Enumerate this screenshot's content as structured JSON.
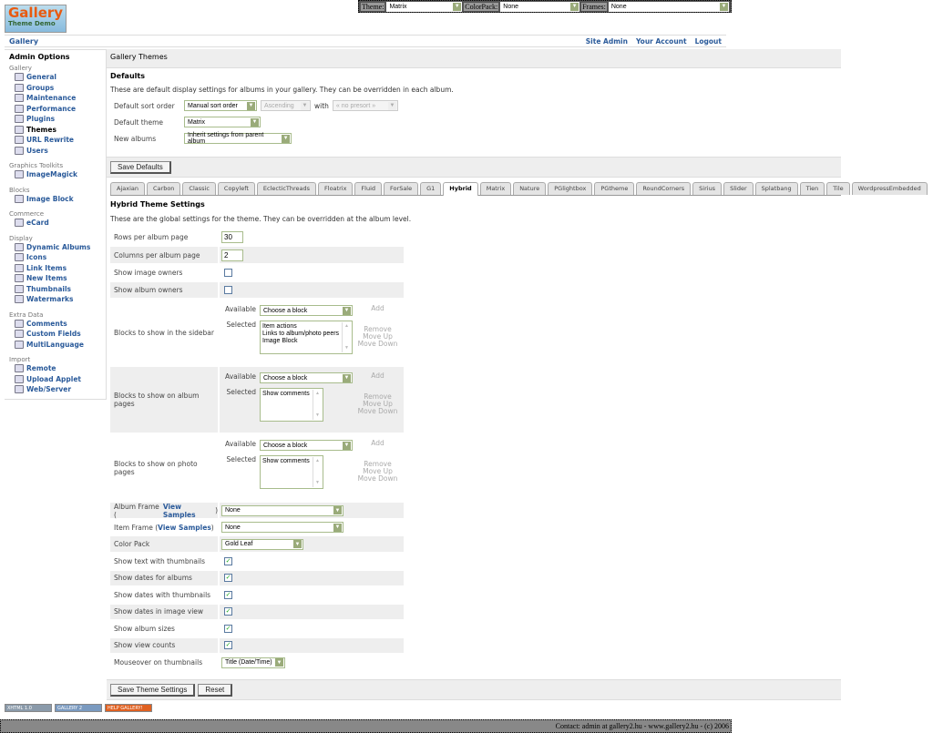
{
  "topbar": {
    "theme_label": "Theme:",
    "theme_value": "Matrix",
    "colorpack_label": "ColorPack:",
    "colorpack_value": "None",
    "frames_label": "Frames:",
    "frames_value": "None"
  },
  "logo": {
    "text": "Gallery",
    "subtext": "Theme Demo"
  },
  "nav": {
    "breadcrumb": "Gallery",
    "links": [
      "Site Admin",
      "Your Account",
      "Logout"
    ]
  },
  "sidebar": {
    "title": "Admin Options",
    "groups": [
      {
        "label": "Gallery",
        "items": [
          "General",
          "Groups",
          "Maintenance",
          "Performance",
          "Plugins",
          "Themes",
          "URL Rewrite",
          "Users"
        ]
      },
      {
        "label": "Graphics Toolkits",
        "items": [
          "ImageMagick"
        ]
      },
      {
        "label": "Blocks",
        "items": [
          "Image Block"
        ]
      },
      {
        "label": "Commerce",
        "items": [
          "eCard"
        ]
      },
      {
        "label": "Display",
        "items": [
          "Dynamic Albums",
          "Icons",
          "Link Items",
          "New Items",
          "Thumbnails",
          "Watermarks"
        ]
      },
      {
        "label": "Extra Data",
        "items": [
          "Comments",
          "Custom Fields",
          "MultiLanguage"
        ]
      },
      {
        "label": "Import",
        "items": [
          "Remote",
          "Upload Applet",
          "Web/Server"
        ]
      }
    ],
    "current": "Themes"
  },
  "main": {
    "title": "Gallery Themes"
  },
  "defaults": {
    "heading": "Defaults",
    "description": "These are default display settings for albums in your gallery. They can be overridden in each album.",
    "sort_label": "Default sort order",
    "sort_value": "Manual sort order",
    "direction_value": "Ascending",
    "with_label": "with",
    "presort_value": "« no presort »",
    "theme_label": "Default theme",
    "theme_value": "Matrix",
    "new_label": "New albums",
    "new_value": "Inherit settings from parent album",
    "save": "Save Defaults"
  },
  "tabs": [
    "Ajaxian",
    "Carbon",
    "Classic",
    "Copyleft",
    "EclecticThreads",
    "Floatrix",
    "Fluid",
    "ForSale",
    "G1",
    "Hybrid",
    "Matrix",
    "Nature",
    "PGlightbox",
    "PGtheme",
    "RoundCorners",
    "Sirius",
    "Slider",
    "Splatbang",
    "Tien",
    "Tile",
    "WordpressEmbedded"
  ],
  "active_tab": "Hybrid",
  "settings": {
    "heading": "Hybrid Theme Settings",
    "description": "These are the global settings for the theme. They can be overridden at the album level.",
    "rows_label": "Rows per album page",
    "rows_value": "30",
    "cols_label": "Columns per album page",
    "cols_value": "2",
    "image_owners_label": "Show image owners",
    "image_owners": false,
    "album_owners_label": "Show album owners",
    "album_owners": false,
    "blocks": {
      "available_label": "Available",
      "selected_label": "Selected",
      "choose": "Choose a block",
      "add": "Add",
      "remove": "Remove",
      "move_up": "Move Up",
      "move_down": "Move Down",
      "sidebar": {
        "label": "Blocks to show in the sidebar",
        "selected": [
          "Item actions",
          "Links to album/photo peers",
          "Image Block"
        ]
      },
      "album": {
        "label": "Blocks to show on album pages",
        "selected": [
          "Show comments"
        ]
      },
      "photo": {
        "label": "Blocks to show on photo pages",
        "selected": [
          "Show comments"
        ]
      }
    },
    "album_frame_label": "Album Frame (",
    "view_samples": "View Samples",
    "close_paren": ")",
    "album_frame_value": "None",
    "item_frame_label": "Item Frame (",
    "item_frame_value": "None",
    "color_pack_label": "Color Pack",
    "color_pack_value": "Gold Leaf",
    "checks": [
      {
        "label": "Show text with thumbnails",
        "checked": true
      },
      {
        "label": "Show dates for albums",
        "checked": true
      },
      {
        "label": "Show dates with thumbnails",
        "checked": true
      },
      {
        "label": "Show dates in image view",
        "checked": true
      },
      {
        "label": "Show album sizes",
        "checked": true
      },
      {
        "label": "Show view counts",
        "checked": true
      }
    ],
    "mouseover_label": "Mouseover on thumbnails",
    "mouseover_value": "Title (Date/Time)",
    "save": "Save Theme Settings",
    "reset": "Reset"
  },
  "badges": [
    "XHTML 1.0",
    "GALLERY 2",
    "HELP GALLERY!"
  ],
  "footer": "Contact: admin at gallery2.hu - www.gallery2.hu - (c) 2006"
}
